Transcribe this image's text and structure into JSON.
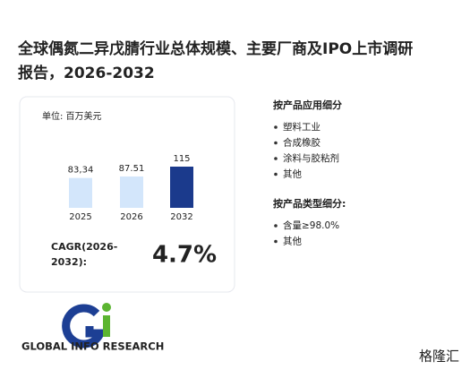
{
  "header": {
    "title_lines": [
      "全球偶氮二异戊腈行业总体规模、主要厂商及IPO上市调研",
      "报告，2026-2032"
    ]
  },
  "chart_data": {
    "type": "bar",
    "unit": "单位: 百万美元",
    "categories": [
      "2025",
      "2026",
      "2032"
    ],
    "values": [
      83.34,
      87.51,
      115
    ],
    "value_labels": [
      "83,34",
      "87.51",
      "115"
    ],
    "colors": [
      "#d3e6fb",
      "#d3e6fb",
      "#1b3a8c"
    ]
  },
  "cagr": {
    "label_lines": [
      "CAGR(2026-",
      "2032):"
    ],
    "value": "4.7%"
  },
  "segments": [
    {
      "title": "按产品应用细分",
      "items": [
        "塑料工业",
        "合成橡胶",
        "涂料与胶粘剂",
        "其他"
      ]
    },
    {
      "title": "按产品类型细分:",
      "items": [
        "含量≥98.0%",
        "其他"
      ]
    }
  ],
  "logo": {
    "text": "GLOBAL INFO RESEARCH"
  },
  "watermark": "格隆汇"
}
